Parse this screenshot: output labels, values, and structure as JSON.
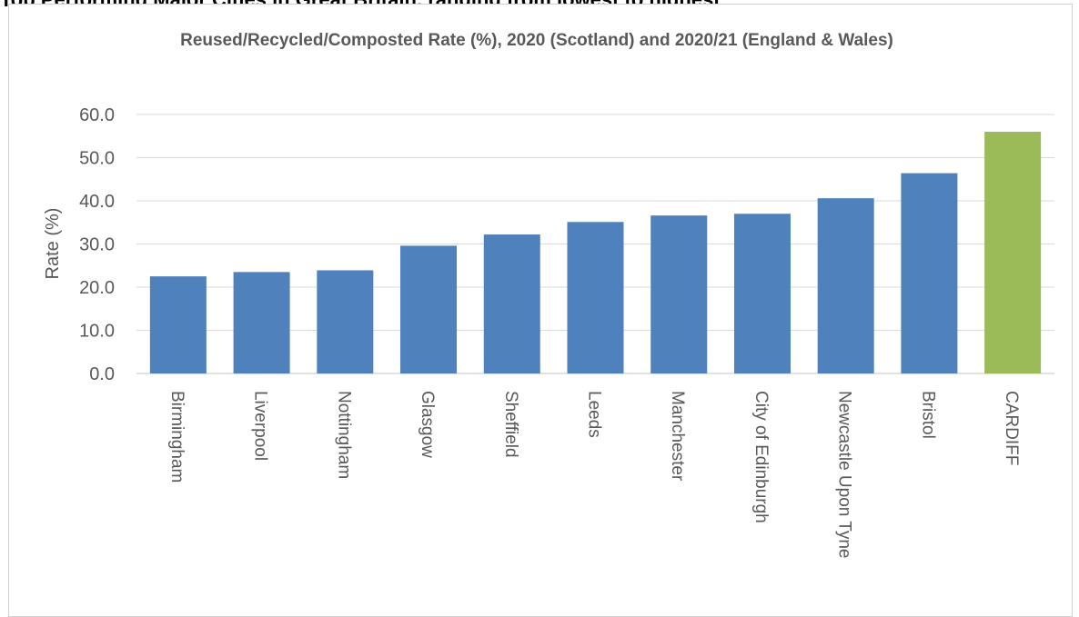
{
  "page": {
    "heading": "Top Performing Major Cities in Great Britain, ranging from lowest to highest"
  },
  "chart_data": {
    "type": "bar",
    "title": "Reused/Recycled/Composted Rate (%), 2020 (Scotland) and 2020/21 (England & Wales)",
    "ylabel": "Rate (%)",
    "xlabel": "",
    "ylim": [
      0,
      60
    ],
    "yticks": [
      "0.0",
      "10.0",
      "20.0",
      "30.0",
      "40.0",
      "50.0",
      "60.0"
    ],
    "grid": true,
    "categories": [
      "Birmingham",
      "Liverpool",
      "Nottingham",
      "Glasgow",
      "Sheffield",
      "Leeds",
      "Manchester",
      "City of Edinburgh",
      "Newcastle Upon Tyne",
      "Bristol",
      "CARDIFF"
    ],
    "values": [
      22.5,
      23.5,
      23.9,
      29.6,
      32.2,
      35.1,
      36.6,
      37.0,
      40.6,
      46.4,
      56.0
    ],
    "colors": [
      "#4f81bd",
      "#4f81bd",
      "#4f81bd",
      "#4f81bd",
      "#4f81bd",
      "#4f81bd",
      "#4f81bd",
      "#4f81bd",
      "#4f81bd",
      "#4f81bd",
      "#9bbb59"
    ],
    "axis_color": "#d9d9d9"
  }
}
